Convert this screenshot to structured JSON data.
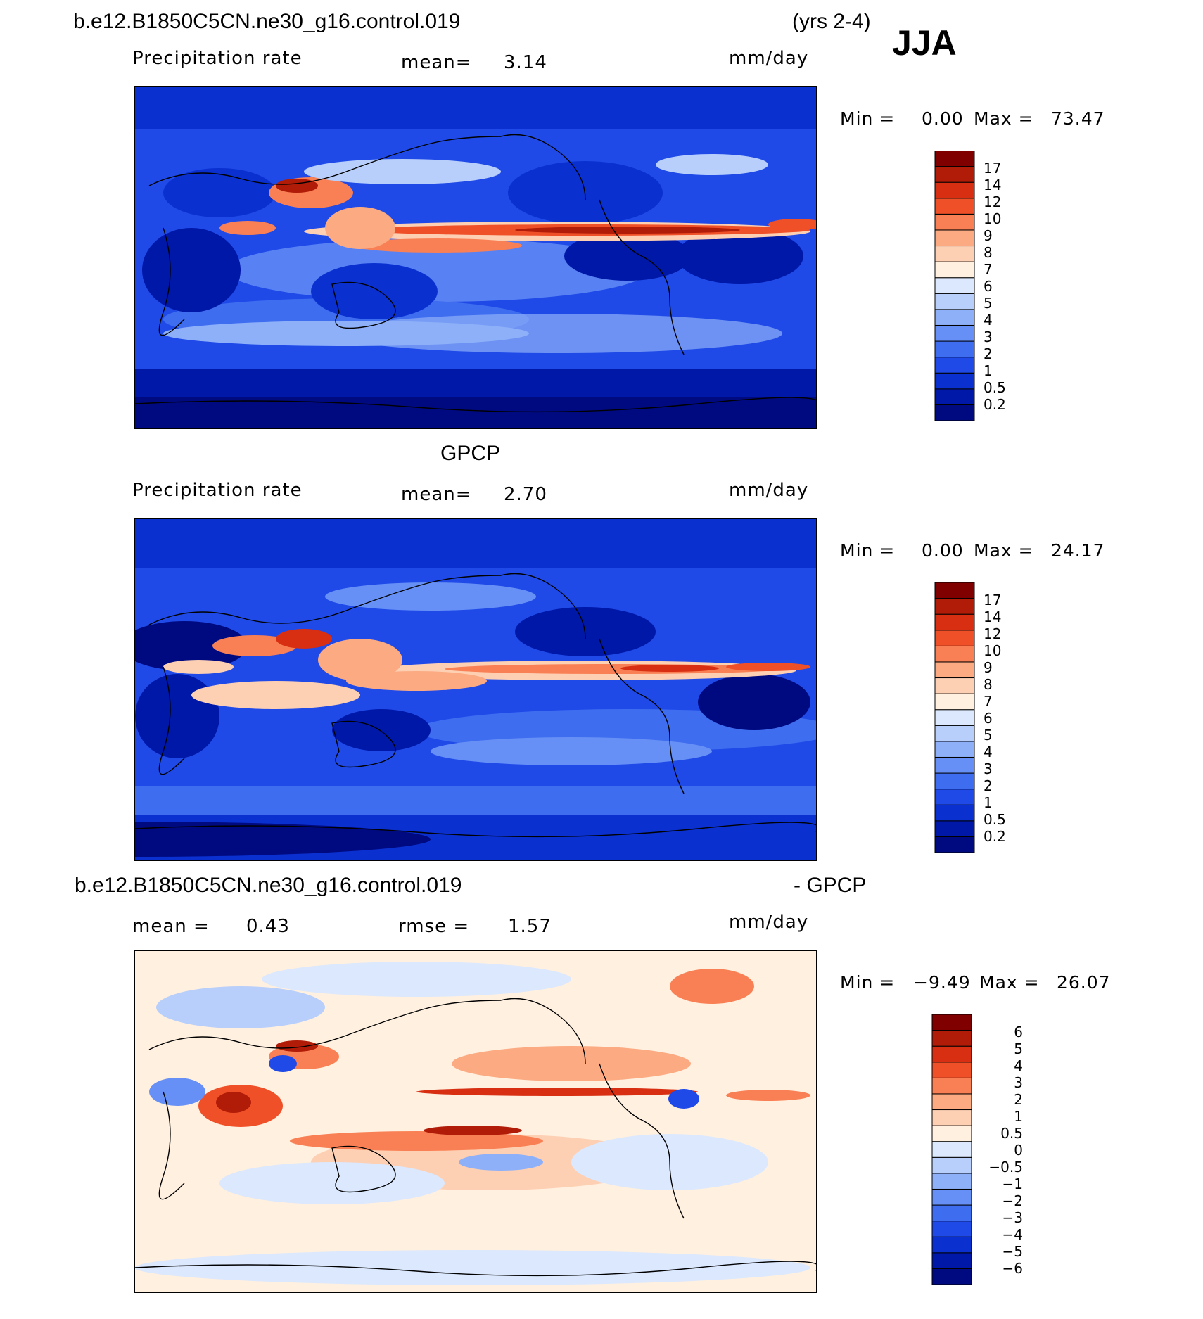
{
  "header": {
    "case_name": "b.e12.B1850C5CN.ne30_g16.control.019",
    "years": "(yrs 2-4)",
    "season": "JJA"
  },
  "colors": {
    "precip_scale": [
      "#000a80",
      "#0018a8",
      "#0a30d0",
      "#1f4ae8",
      "#3f6df0",
      "#6690f5",
      "#8eb0f8",
      "#b8cffb",
      "#dbe8fd",
      "#fff0e0",
      "#fdd0b4",
      "#fbaa82",
      "#f98054",
      "#f05028",
      "#d82f12",
      "#b01c08",
      "#800000"
    ],
    "diff_scale": [
      "#000a80",
      "#0018a8",
      "#0a30d0",
      "#1f4ae8",
      "#3f6df0",
      "#6690f5",
      "#8eb0f8",
      "#b8cffb",
      "#dbe8fd",
      "#fff0e0",
      "#fdd0b4",
      "#fbaa82",
      "#f98054",
      "#f05028",
      "#d82f12",
      "#b01c08",
      "#800000"
    ]
  },
  "panels": [
    {
      "id": "model",
      "heading": "",
      "variable": "Precipitation rate",
      "stat1_label": "mean=",
      "stat1_value": "3.14",
      "stat2_label": "",
      "stat2_value": "",
      "units": "mm/day",
      "min_label": "Min =",
      "min_value": "0.00",
      "max_label": "Max =",
      "max_value": "73.47",
      "colorbar_ticks": [
        "17",
        "14",
        "12",
        "10",
        "9",
        "8",
        "7",
        "6",
        "5",
        "4",
        "3",
        "2",
        "1",
        "0.5",
        "0.2"
      ]
    },
    {
      "id": "obs",
      "heading": "GPCP",
      "variable": "Precipitation rate",
      "stat1_label": "mean=",
      "stat1_value": "2.70",
      "stat2_label": "",
      "stat2_value": "",
      "units": "mm/day",
      "min_label": "Min =",
      "min_value": "0.00",
      "max_label": "Max =",
      "max_value": "24.17",
      "colorbar_ticks": [
        "17",
        "14",
        "12",
        "10",
        "9",
        "8",
        "7",
        "6",
        "5",
        "4",
        "3",
        "2",
        "1",
        "0.5",
        "0.2"
      ]
    },
    {
      "id": "diff",
      "heading_left": "b.e12.B1850C5CN.ne30_g16.control.019",
      "heading_right": "- GPCP",
      "stat1_label": "mean =",
      "stat1_value": "0.43",
      "stat2_label": "rmse =",
      "stat2_value": "1.57",
      "units": "mm/day",
      "min_label": "Min =",
      "min_value": "−9.49",
      "max_label": "Max =",
      "max_value": "26.07",
      "colorbar_ticks": [
        "6",
        "5",
        "4",
        "3",
        "2",
        "1",
        "0.5",
        "0",
        "−0.5",
        "−1",
        "−2",
        "−3",
        "−4",
        "−5",
        "−6"
      ]
    }
  ]
}
